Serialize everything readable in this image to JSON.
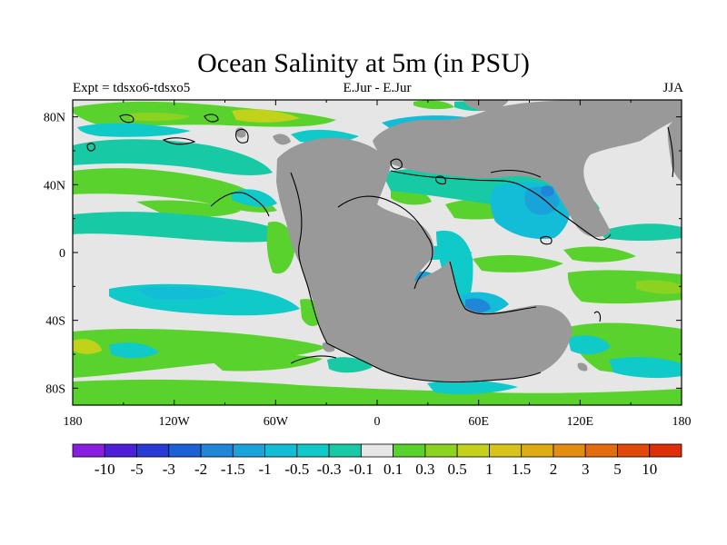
{
  "chart_data": {
    "type": "heatmap",
    "title": "Ocean Salinity at 5m (in PSU)",
    "left_string": "Expt = tdsxo6-tdsxo5",
    "center_string": "E.Jur - E.Jur",
    "right_string": "JJA",
    "x_ticks": [
      "180",
      "120W",
      "60W",
      "0",
      "60E",
      "120E",
      "180"
    ],
    "y_ticks": [
      "80N",
      "40N",
      "0",
      "40S",
      "80S"
    ],
    "x_range": [
      -180,
      180
    ],
    "y_range": [
      -90,
      90
    ],
    "land_color": "#999999",
    "zero_color": "#e6e6e6",
    "colorbar": {
      "labels": [
        "-10",
        "-5",
        "-3",
        "-2",
        "-1.5",
        "-1",
        "-0.5",
        "-0.3",
        "-0.1",
        "0.1",
        "0.3",
        "0.5",
        "1",
        "1.5",
        "2",
        "3",
        "5",
        "10"
      ],
      "colors": [
        "#8a1ee0",
        "#4b20d8",
        "#2a3ad6",
        "#1c62d6",
        "#1f86d8",
        "#19a3d9",
        "#13bcd7",
        "#10c9c9",
        "#18c9a6",
        "#e6e6e6",
        "#5ad22e",
        "#8cd221",
        "#c2d21b",
        "#d7c41b",
        "#deab12",
        "#e28e10",
        "#e36c0e",
        "#e24a0c",
        "#dd2e0a"
      ]
    }
  }
}
